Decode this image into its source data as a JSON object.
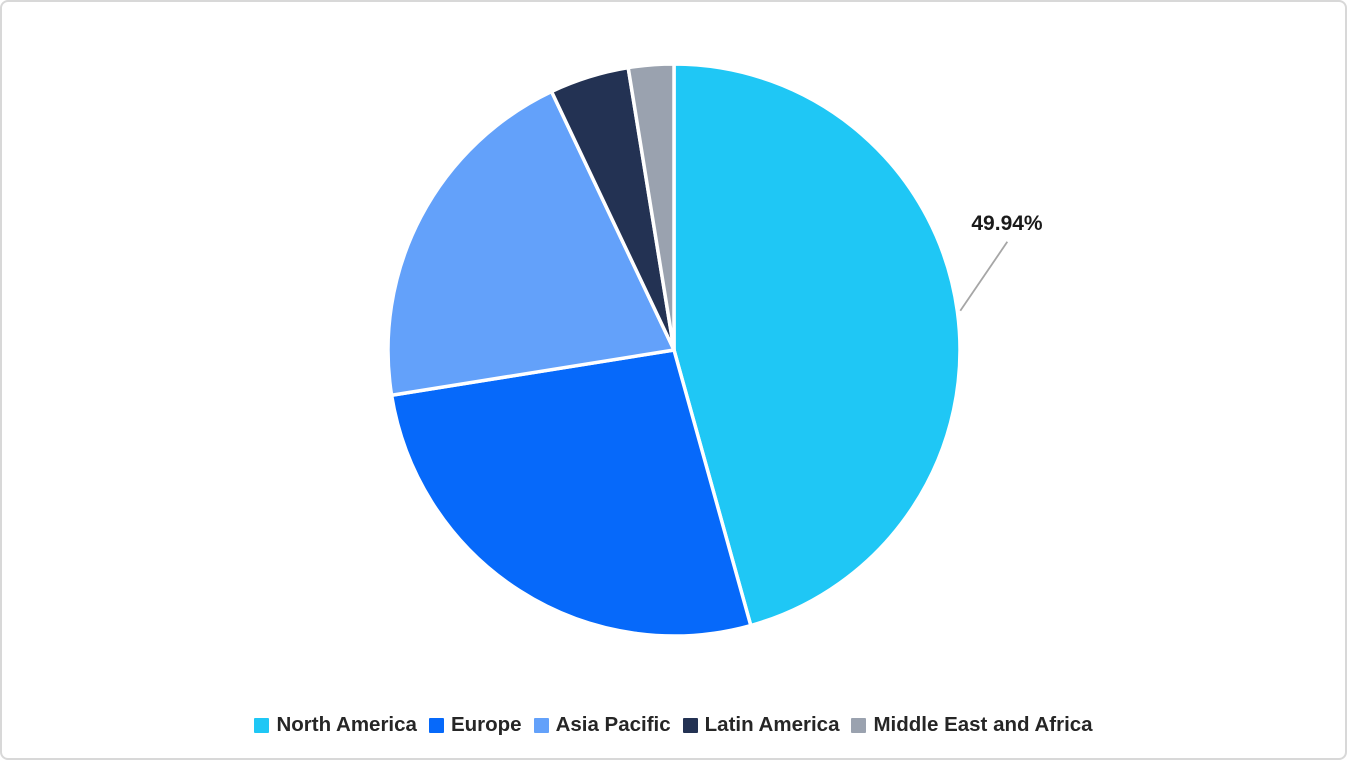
{
  "chart_data": {
    "type": "pie",
    "categories": [
      "North America",
      "Europe",
      "Asia Pacific",
      "Latin America",
      "Middle East and Africa"
    ],
    "values": [
      49.94,
      29.3,
      22.4,
      4.9,
      2.8
    ],
    "unit": "%",
    "data_label": {
      "category": "North America",
      "text": "49.94%"
    },
    "colors": [
      "#1fc7f5",
      "#0669fa",
      "#63a1fa",
      "#233253",
      "#9aa2af"
    ],
    "start_angle_deg": 0,
    "direction": "clockwise",
    "legend_position": "bottom"
  },
  "styles": {
    "background_color": "#ffffff",
    "border_color": "#d8d8d8",
    "slice_divider_color": "#ffffff",
    "leader_line_color": "#a6a6a6",
    "data_label_color": "#1a1a1a",
    "legend_text_color": "#262626"
  }
}
